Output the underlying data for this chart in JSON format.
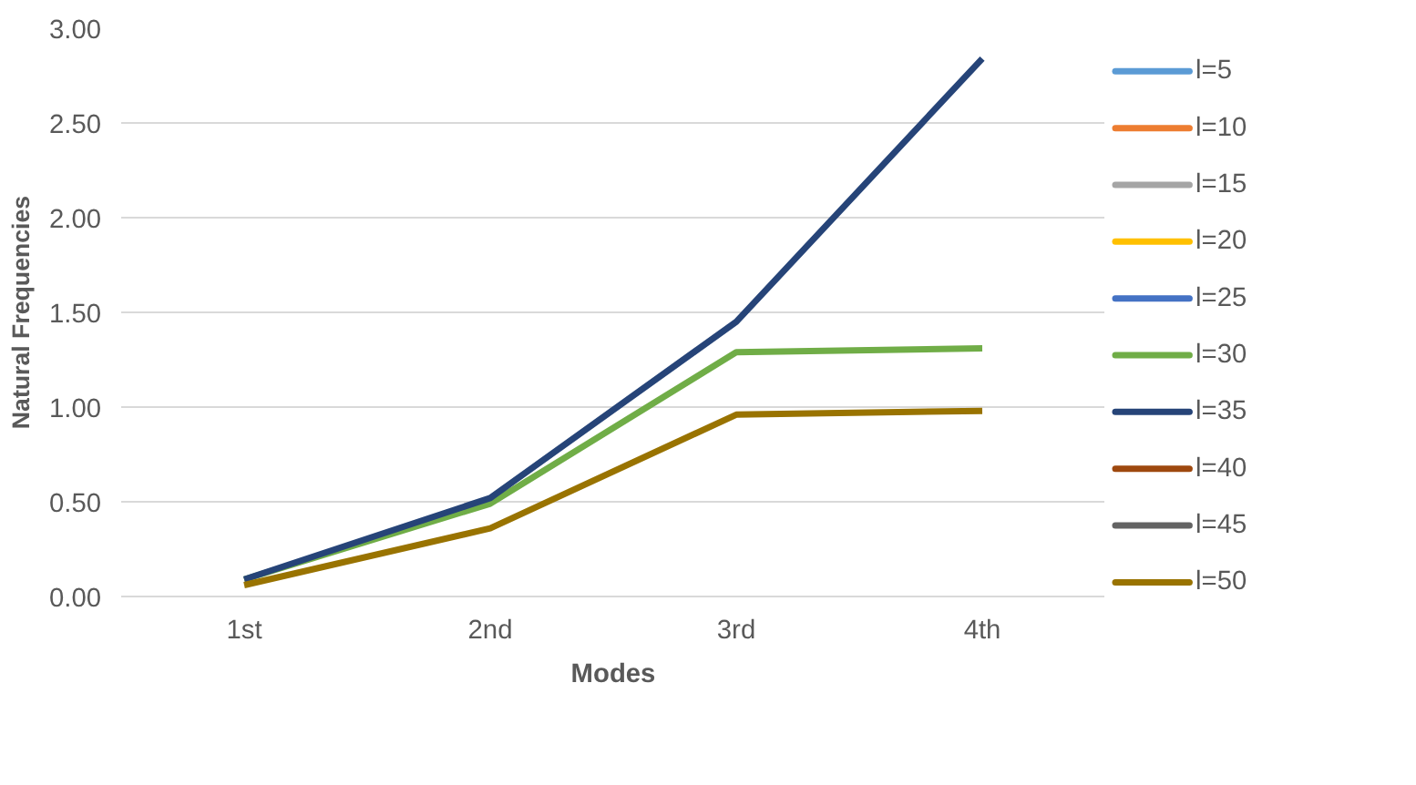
{
  "chart_data": {
    "type": "line",
    "xlabel": "Modes",
    "ylabel": "Natural Frequencies",
    "categories": [
      "1st",
      "2nd",
      "3rd",
      "4th"
    ],
    "series": [
      {
        "name": "l=5",
        "color": "#5b9bd5",
        "values": [
          null,
          null,
          null,
          null
        ]
      },
      {
        "name": "l=10",
        "color": "#ed7d31",
        "values": [
          null,
          null,
          null,
          null
        ]
      },
      {
        "name": "l=15",
        "color": "#a5a5a5",
        "values": [
          null,
          null,
          null,
          null
        ]
      },
      {
        "name": "l=20",
        "color": "#ffc000",
        "values": [
          null,
          null,
          null,
          null
        ]
      },
      {
        "name": "l=25",
        "color": "#4472c4",
        "values": [
          null,
          null,
          null,
          null
        ]
      },
      {
        "name": "l=30",
        "color": "#70ad47",
        "values": [
          0.09,
          0.49,
          1.29,
          1.31
        ]
      },
      {
        "name": "l=35",
        "color": "#264478",
        "values": [
          0.09,
          0.52,
          1.45,
          2.84
        ]
      },
      {
        "name": "l=40",
        "color": "#9e480e",
        "values": [
          null,
          null,
          null,
          null
        ]
      },
      {
        "name": "l=45",
        "color": "#636363",
        "values": [
          null,
          null,
          null,
          null
        ]
      },
      {
        "name": "l=50",
        "color": "#997300",
        "values": [
          0.06,
          0.36,
          0.96,
          0.98
        ]
      }
    ],
    "ylim": [
      0,
      3
    ],
    "yticks": [
      {
        "value": 0,
        "label": "0.00"
      },
      {
        "value": 0.5,
        "label": "0.50"
      },
      {
        "value": 1,
        "label": "1.00"
      },
      {
        "value": 1.5,
        "label": "1.50"
      },
      {
        "value": 2,
        "label": "2.00"
      },
      {
        "value": 2.5,
        "label": "2.50"
      },
      {
        "value": 3,
        "label": "3.00"
      }
    ],
    "grid": "y",
    "legend": "right",
    "marker": "none",
    "line_style": "solid"
  }
}
